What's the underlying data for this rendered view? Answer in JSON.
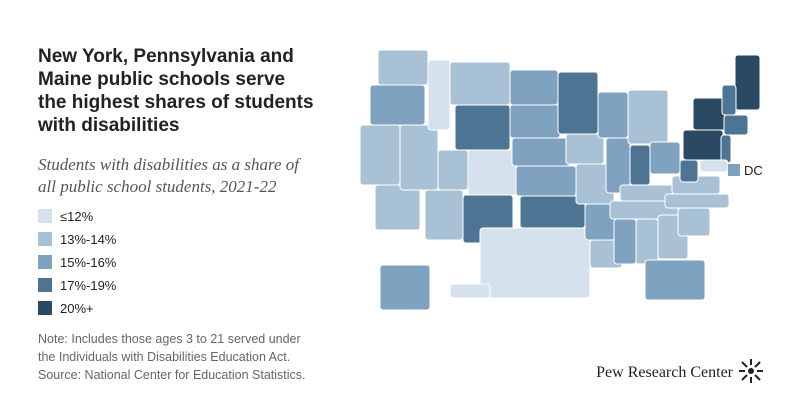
{
  "title": [
    "New York, Pennsylvania and",
    "Maine public schools serve",
    "the highest shares of students",
    "with disabilities"
  ],
  "subtitle": [
    "Students with disabilities as a share of",
    "all public school students, 2021-22"
  ],
  "legend": [
    {
      "label": "≤12%",
      "color": "#d5e2ed"
    },
    {
      "label": "13%-14%",
      "color": "#a8c1d5"
    },
    {
      "label": "15%-16%",
      "color": "#7ea2bf"
    },
    {
      "label": "17%-19%",
      "color": "#4e7493"
    },
    {
      "label": "20%+",
      "color": "#2b4963"
    }
  ],
  "dc_label": "DC",
  "note": [
    "Note: Includes those ages 3 to 21 served under",
    "the Individuals with Disabilities Education Act.",
    "Source: National Center for Education Statistics."
  ],
  "logo": "Pew Research Center"
}
